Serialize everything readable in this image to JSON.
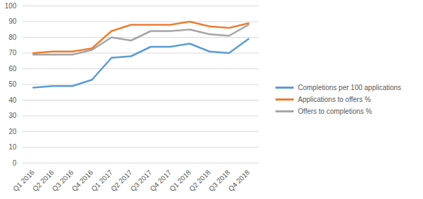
{
  "chart_data": {
    "type": "line",
    "categories": [
      "Q1 2016",
      "Q2 2016",
      "Q3 2016",
      "Q4 2016",
      "Q1 2017",
      "Q2 2017",
      "Q3 2017",
      "Q4 2017",
      "Q1 2018",
      "Q2 2018",
      "Q3 2018",
      "Q4 2018"
    ],
    "series": [
      {
        "name": "Completions per 100 applications",
        "color": "#5b9bd5",
        "values": [
          48,
          49,
          49,
          53,
          67,
          68,
          74,
          74,
          76,
          71,
          70,
          79
        ]
      },
      {
        "name": "Applications to offers %",
        "color": "#ed7d31",
        "values": [
          70,
          71,
          71,
          73,
          84,
          88,
          88,
          88,
          90,
          87,
          86,
          89
        ]
      },
      {
        "name": "Offers to completions %",
        "color": "#a5a5a5",
        "values": [
          69,
          69,
          69,
          72,
          80,
          78,
          84,
          84,
          85,
          82,
          81,
          88
        ]
      }
    ],
    "ylim": [
      0,
      100
    ],
    "yticks": [
      0,
      10,
      20,
      30,
      40,
      50,
      60,
      70,
      80,
      90,
      100
    ],
    "grid": true,
    "legend": "right"
  }
}
